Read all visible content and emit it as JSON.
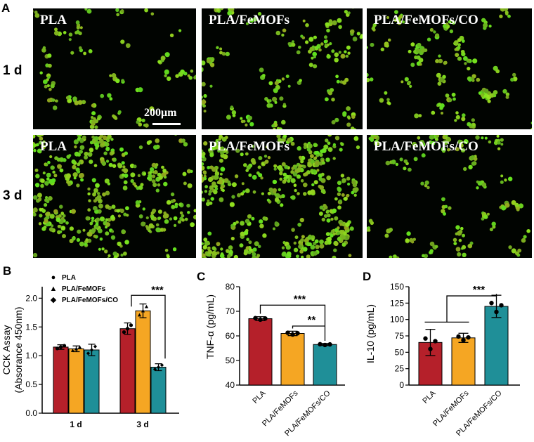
{
  "panels": {
    "A": "A",
    "B": "B",
    "C": "C",
    "D": "D"
  },
  "micrographs": {
    "rows": [
      "1 d",
      "3 d"
    ],
    "columns": [
      "PLA",
      "PLA/FeMOFs",
      "PLA/FeMOFs/CO"
    ],
    "scale_bar": "200μm",
    "cell_color": "#7ed321",
    "density": [
      [
        0.25,
        0.35,
        0.3
      ],
      [
        0.75,
        0.85,
        0.3
      ]
    ]
  },
  "colors": {
    "PLA": "#b5202a",
    "PLA/FeMOFs": "#f5a623",
    "PLA/FeMOFs/CO": "#1f8f98"
  },
  "chart_data": [
    {
      "panel": "B",
      "type": "bar",
      "ylabel_line1": "CCK Assay",
      "ylabel_line2": "(Absorance 450nm)",
      "categories": [
        "1 d",
        "3 d"
      ],
      "ylim": [
        0,
        2.2
      ],
      "legend_markers": [
        "●",
        "▲",
        "◆"
      ],
      "series": [
        {
          "name": "PLA",
          "values": [
            1.15,
            1.47
          ],
          "err": [
            0.04,
            0.1
          ]
        },
        {
          "name": "PLA/FeMOFs",
          "values": [
            1.12,
            1.78
          ],
          "err": [
            0.05,
            0.12
          ]
        },
        {
          "name": "PLA/FeMOFs/CO",
          "values": [
            1.1,
            0.8
          ],
          "err": [
            0.1,
            0.06
          ]
        }
      ],
      "significance": "***"
    },
    {
      "panel": "C",
      "type": "bar",
      "ylabel": "TNF-α (pg/mL)",
      "categories": [
        "PLA",
        "PLA/FeMOFs",
        "PLA/FeMOFs/CO"
      ],
      "values": [
        67,
        61,
        56.5
      ],
      "err": [
        0.8,
        0.9,
        0.4
      ],
      "ylim": [
        40,
        80
      ],
      "yticks": [
        40,
        50,
        60,
        70,
        80
      ],
      "significance": [
        "***",
        "**"
      ]
    },
    {
      "panel": "D",
      "type": "bar",
      "ylabel": "IL-10 (pg/mL)",
      "categories": [
        "PLA",
        "PLA/FeMOFs",
        "PLA/FeMOFs/CO"
      ],
      "values": [
        65,
        72,
        120
      ],
      "err": [
        20,
        7,
        17
      ],
      "ylim": [
        0,
        150
      ],
      "yticks": [
        0,
        25,
        50,
        75,
        100,
        125,
        150
      ],
      "significance": [
        "***"
      ]
    }
  ]
}
